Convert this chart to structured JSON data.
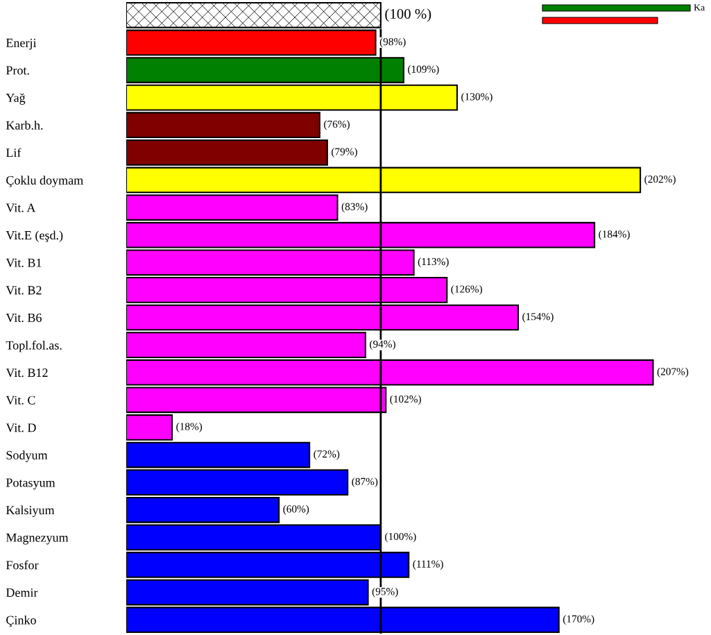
{
  "chart_data": {
    "type": "bar",
    "orientation": "horizontal",
    "categories": [
      null,
      "Enerji",
      "Prot.",
      "Yağ",
      "Karb.h.",
      "Lif",
      "Çoklu doymam",
      "Vit. A",
      "Vit.E (eşd.)",
      "Vit. B1",
      "Vit. B2",
      "Vit. B6",
      "Topl.fol.as.",
      "Vit. B12",
      "Vit. C",
      "Vit. D",
      "Sodyum",
      "Potasyum",
      "Kalsiyum",
      "Magnezyum",
      "Fosfor",
      "Demir",
      "Çinko"
    ],
    "values": [
      100,
      98,
      109,
      130,
      76,
      79,
      202,
      83,
      184,
      113,
      126,
      154,
      94,
      207,
      102,
      18,
      72,
      87,
      60,
      100,
      111,
      95,
      170
    ],
    "value_labels": [
      "(100 %)",
      "(98%)",
      "(109%)",
      "(130%)",
      "(76%)",
      "(79%)",
      "(202%)",
      "(83%)",
      "(184%)",
      "(113%)",
      "(126%)",
      "(154%)",
      "(94%)",
      "(207%)",
      "(102%)",
      "(18%)",
      "(72%)",
      "(87%)",
      "(60%)",
      "(100%)",
      "(111%)",
      "(95%)",
      "(170%)"
    ],
    "colors": [
      "#ffffff",
      "#ff0000",
      "#008000",
      "#ffff00",
      "#800000",
      "#800000",
      "#ffff00",
      "#ff00ff",
      "#ff00ff",
      "#ff00ff",
      "#ff00ff",
      "#ff00ff",
      "#ff00ff",
      "#ff00ff",
      "#ff00ff",
      "#ff00ff",
      "#0000ff",
      "#0000ff",
      "#0000ff",
      "#0000ff",
      "#0000ff",
      "#0000ff",
      "#0000ff"
    ],
    "tick_labels": "y",
    "grid": false,
    "legend": false,
    "ref_lines": [
      {
        "axis": "x",
        "value": 100,
        "color": "#000000"
      }
    ],
    "annotations": [
      "Ka"
    ]
  }
}
